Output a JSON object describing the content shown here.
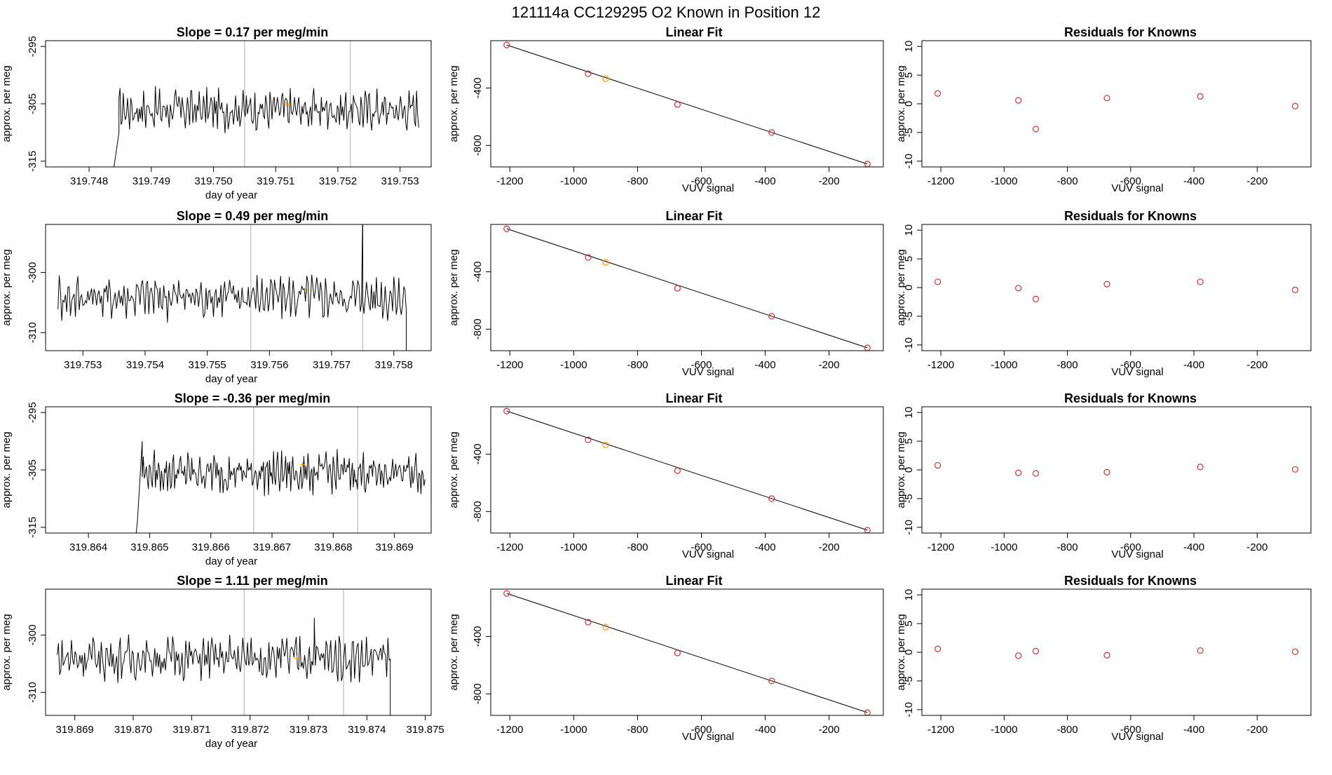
{
  "page_title": "121114a      CC129295    O2 Known in Position  12",
  "labels": {
    "slope_prefix": "Slope = ",
    "slope_suffix": " per meg/min",
    "fit_title": "Linear Fit",
    "resid_title": "Residuals for Knowns",
    "day_xlabel": "day of year",
    "vuv_xlabel": "VUV signal",
    "ylabel": "approx. per meg"
  },
  "colors": {
    "line": "#000000",
    "point": "#cc3333",
    "highlight": "#ff9900",
    "marker": "#bbbbbb"
  },
  "chart_data": [
    {
      "type": "line",
      "panel": "timeseries",
      "row": 1,
      "title": "Slope =  0.17  per meg/min",
      "slope": "0.17",
      "xlabel": "day of year",
      "ylabel": "approx. per meg",
      "xlim": [
        319.7473,
        319.7535
      ],
      "ylim": [
        -316,
        -294
      ],
      "xticks": [
        "319.748",
        "319.749",
        "319.750",
        "319.751",
        "319.752",
        "319.753"
      ],
      "yticks": [
        -315,
        -305,
        -295
      ],
      "x_start": 319.7475,
      "x_end": 319.7533,
      "pre_plunge": {
        "x": 319.7475,
        "y": -319
      },
      "rise_x": 319.7484,
      "rise_from": -316,
      "level": -306,
      "level_start": -310,
      "noise": 2.6,
      "spike": null,
      "end_drop": null,
      "vlines": [
        319.7505,
        319.7522
      ],
      "highlight": {
        "x": 319.7512,
        "y": -305
      }
    },
    {
      "type": "line",
      "panel": "timeseries",
      "row": 2,
      "title": "Slope =  0.49  per meg/min",
      "slope": "0.49",
      "xlabel": "day of year",
      "ylabel": "approx. per meg",
      "xlim": [
        319.7524,
        319.7586
      ],
      "ylim": [
        -313,
        -292
      ],
      "xticks": [
        "319.753",
        "319.754",
        "319.755",
        "319.756",
        "319.757",
        "319.758"
      ],
      "yticks": [
        -310,
        -300
      ],
      "x_start": 319.7526,
      "x_end": 319.7582,
      "pre_plunge": null,
      "rise_x": null,
      "rise_from": null,
      "level": -304,
      "level_start": null,
      "noise": 2.8,
      "spike": {
        "x": 319.7575,
        "y": -290
      },
      "end_drop": {
        "x": 319.7582,
        "y": -316
      },
      "vlines": [
        319.7557,
        319.7575
      ],
      "highlight": {
        "x": 319.7566,
        "y": -303
      }
    },
    {
      "type": "line",
      "panel": "timeseries",
      "row": 3,
      "title": "Slope =  -0.36  per meg/min",
      "slope": "-0.36",
      "xlabel": "day of year",
      "ylabel": "approx. per meg",
      "xlim": [
        319.8633,
        319.8696
      ],
      "ylim": [
        -316,
        -294
      ],
      "xticks": [
        "319.864",
        "319.865",
        "319.866",
        "319.867",
        "319.868",
        "319.869"
      ],
      "yticks": [
        -315,
        -305,
        -295
      ],
      "x_start": 319.8643,
      "x_end": 319.8695,
      "pre_plunge": {
        "x": 319.8643,
        "y": -319
      },
      "rise_x": 319.8648,
      "rise_from": -314,
      "level": -305.5,
      "level_start": -300,
      "noise": 2.6,
      "spike": null,
      "end_drop": null,
      "vlines": [
        319.8667,
        319.8684
      ],
      "highlight": {
        "x": 319.8675,
        "y": -304
      }
    },
    {
      "type": "line",
      "panel": "timeseries",
      "row": 4,
      "title": "Slope =  1.11  per meg/min",
      "slope": "1.11",
      "xlabel": "day of year",
      "ylabel": "approx. per meg",
      "xlim": [
        319.8685,
        319.8751
      ],
      "ylim": [
        -314,
        -292
      ],
      "xticks": [
        "319.869",
        "319.870",
        "319.871",
        "319.872",
        "319.873",
        "319.874",
        "319.875"
      ],
      "yticks": [
        -310,
        -300
      ],
      "x_start": 319.8687,
      "x_end": 319.8744,
      "pre_plunge": null,
      "rise_x": null,
      "rise_from": null,
      "level": -304,
      "level_start": null,
      "noise": 2.8,
      "spike": {
        "x": 319.8731,
        "y": -297
      },
      "end_drop": {
        "x": 319.8744,
        "y": -318
      },
      "vlines": [
        319.8719,
        319.8736
      ],
      "highlight": {
        "x": 319.8728,
        "y": -304
      }
    }
  ],
  "fit_data": {
    "type": "scatter",
    "title": "Linear Fit",
    "xlabel": "VUV signal",
    "ylabel": "approx. per meg",
    "xlim": [
      -1260,
      -30
    ],
    "ylim": [
      -950,
      -70
    ],
    "xticks": [
      -1200,
      -1000,
      -800,
      -600,
      -400,
      -200
    ],
    "yticks": [
      -400,
      -800
    ],
    "x": [
      -1210,
      -955,
      -900,
      -675,
      -380,
      -80
    ],
    "y": [
      -100,
      -300,
      -335,
      -515,
      -710,
      -930
    ],
    "highlight_index": 2
  },
  "residual_data": {
    "type": "scatter",
    "title": "Residuals for Knowns",
    "xlabel": "VUV signal",
    "ylabel": "approx. per meg",
    "xlim": [
      -1260,
      -30
    ],
    "ylim": [
      -11,
      11
    ],
    "xticks": [
      -1200,
      -1000,
      -800,
      -600,
      -400,
      -200
    ],
    "yticks": [
      10,
      5,
      0,
      -5,
      -10
    ],
    "rows": [
      {
        "x": [
          -1210,
          -955,
          -900,
          -675,
          -380,
          -80
        ],
        "y": [
          1.8,
          0.6,
          -4.4,
          1.0,
          1.3,
          -0.4
        ]
      },
      {
        "x": [
          -1210,
          -955,
          -900,
          -675,
          -380,
          -80
        ],
        "y": [
          1.0,
          -0.1,
          -2.0,
          0.6,
          1.0,
          -0.4
        ]
      },
      {
        "x": [
          -1210,
          -955,
          -900,
          -675,
          -380,
          -80
        ],
        "y": [
          0.8,
          -0.5,
          -0.6,
          -0.4,
          0.5,
          0.1
        ]
      },
      {
        "x": [
          -1210,
          -955,
          -900,
          -675,
          -380,
          -80
        ],
        "y": [
          0.6,
          -0.6,
          0.2,
          -0.5,
          0.3,
          0.1
        ]
      }
    ]
  }
}
